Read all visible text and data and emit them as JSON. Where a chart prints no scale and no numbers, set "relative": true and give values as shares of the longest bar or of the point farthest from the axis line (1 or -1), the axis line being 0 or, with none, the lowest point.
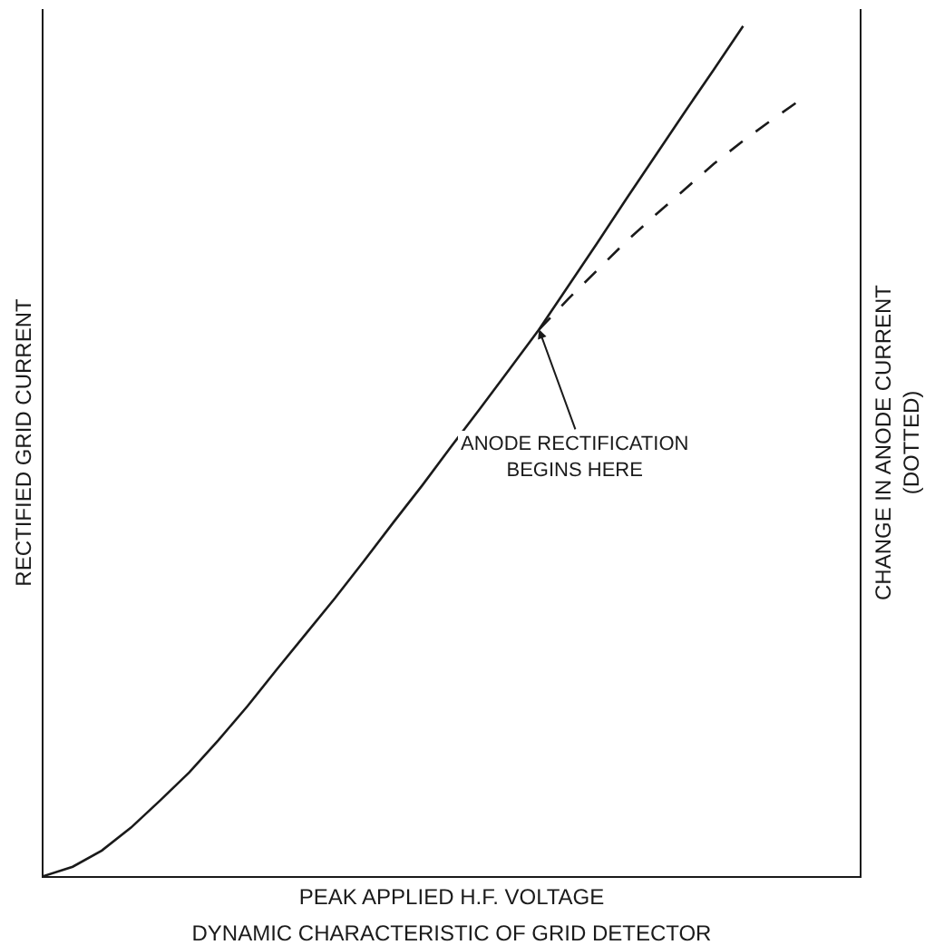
{
  "chart_data": {
    "type": "line",
    "relative": true,
    "title": "DYNAMIC CHARACTERISTIC OF GRID DETECTOR",
    "xlabel": "PEAK APPLIED H.F. VOLTAGE",
    "ylabel": "RECTIFIED GRID CURRENT",
    "y2label": "CHANGE IN ANODE CURRENT\n(DOTTED)",
    "categories": [
      null,
      null,
      null,
      null,
      null,
      null,
      null,
      null,
      null,
      null,
      null,
      null,
      null,
      null,
      null,
      null,
      null,
      null,
      null,
      null,
      null,
      null,
      null,
      null,
      null,
      null,
      null,
      null,
      null
    ],
    "series": [
      {
        "color": "#1a1a1a",
        "line_style": "solid",
        "values": [
          0,
          0.011,
          0.03,
          0.057,
          0.089,
          0.122,
          0.16,
          0.2,
          0.243,
          0.285,
          0.327,
          0.371,
          0.416,
          0.46,
          0.506,
          0.551,
          0.597,
          0.643,
          0.694,
          0.745,
          0.797,
          0.848,
          0.899,
          0.949,
          1,
          null,
          null,
          null,
          null
        ]
      },
      {
        "color": "#1a1a1a",
        "line_style": "dashed",
        "values": [
          null,
          null,
          null,
          null,
          null,
          null,
          null,
          null,
          null,
          null,
          null,
          null,
          null,
          null,
          null,
          null,
          null,
          0.643,
          0.679,
          0.713,
          0.747,
          0.778,
          0.808,
          0.838,
          0.865,
          0.89,
          0.914,
          null,
          null
        ]
      }
    ],
    "annotations": [
      "ANODE RECTIFICATION\nBEGINS HERE"
    ],
    "marker": "none"
  }
}
